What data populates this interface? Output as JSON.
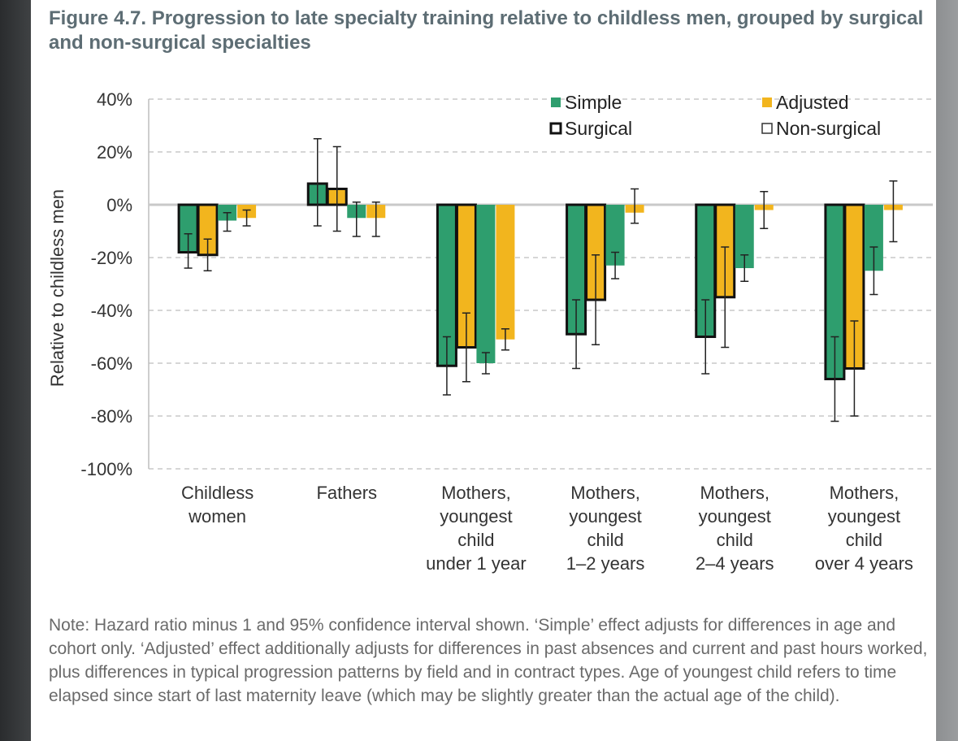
{
  "figure": {
    "title": "Figure 4.7. Progression to late specialty training relative to childless men, grouped by surgical and non-surgical specialties",
    "note": "Note: Hazard ratio minus 1 and 95% confidence interval shown. ‘Simple’ effect adjusts for differences in age and cohort only. ‘Adjusted’ effect additionally adjusts for differences in past absences and current and past hours worked, plus differences in typical progression patterns by field and in contract types. Age of youngest child refers to time elapsed since start of last maternity leave (which may be slightly greater than the actual age of the child)."
  },
  "colors": {
    "simple": "#2e9e6e",
    "adjusted": "#f2b51e",
    "surgical_border": "#111111",
    "axis_text": "#333333",
    "grid": "#c8c8c8",
    "errorbar": "#222222"
  },
  "chart_data": {
    "type": "bar",
    "title": "Figure 4.7. Progression to late specialty training relative to childless men, grouped by surgical and non-surgical specialties",
    "ylabel": "Relative to childless men",
    "xlabel": "",
    "ylim": [
      -100,
      40
    ],
    "yticks": [
      40,
      20,
      0,
      -20,
      -40,
      -60,
      -80,
      -100
    ],
    "ytick_labels": [
      "40%",
      "20%",
      "0%",
      "-20%",
      "-40%",
      "-60%",
      "-80%",
      "-100%"
    ],
    "grid": true,
    "legend": {
      "placement": "top-right",
      "entries": [
        "Simple",
        "Adjusted",
        "Surgical",
        "Non-surgical"
      ]
    },
    "categories": [
      [
        "Childless",
        "women"
      ],
      [
        "Fathers"
      ],
      [
        "Mothers,",
        "youngest",
        "child",
        "under 1 year"
      ],
      [
        "Mothers,",
        "youngest",
        "child",
        "1–2 years"
      ],
      [
        "Mothers,",
        "youngest",
        "child",
        "2–4 years"
      ],
      [
        "Mothers,",
        "youngest",
        "child",
        "over 4 years"
      ]
    ],
    "series": [
      {
        "name": "Surgical Simple",
        "effect": "simple",
        "group": "surgical",
        "values": [
          -18,
          8,
          -61,
          -49,
          -50,
          -66
        ],
        "ci_low": [
          -24,
          -8,
          -72,
          -62,
          -64,
          -82
        ],
        "ci_high": [
          -11,
          25,
          -50,
          -36,
          -36,
          -50
        ]
      },
      {
        "name": "Surgical Adjusted",
        "effect": "adjusted",
        "group": "surgical",
        "values": [
          -19,
          6,
          -54,
          -36,
          -35,
          -62
        ],
        "ci_low": [
          -25,
          -10,
          -67,
          -53,
          -54,
          -80
        ],
        "ci_high": [
          -13,
          22,
          -41,
          -19,
          -16,
          -44
        ]
      },
      {
        "name": "Non-surgical Simple",
        "effect": "simple",
        "group": "non-surgical",
        "values": [
          -6,
          -5,
          -60,
          -23,
          -24,
          -25
        ],
        "ci_low": [
          -10,
          -12,
          -64,
          -28,
          -29,
          -34
        ],
        "ci_high": [
          -3,
          1,
          -56,
          -18,
          -19,
          -16
        ]
      },
      {
        "name": "Non-surgical Adjusted",
        "effect": "adjusted",
        "group": "non-surgical",
        "values": [
          -5,
          -5,
          -51,
          -3,
          -2,
          -2
        ],
        "ci_low": [
          -8,
          -12,
          -55,
          -7,
          -9,
          -14
        ],
        "ci_high": [
          -2,
          1,
          -47,
          6,
          5,
          9
        ]
      }
    ]
  }
}
